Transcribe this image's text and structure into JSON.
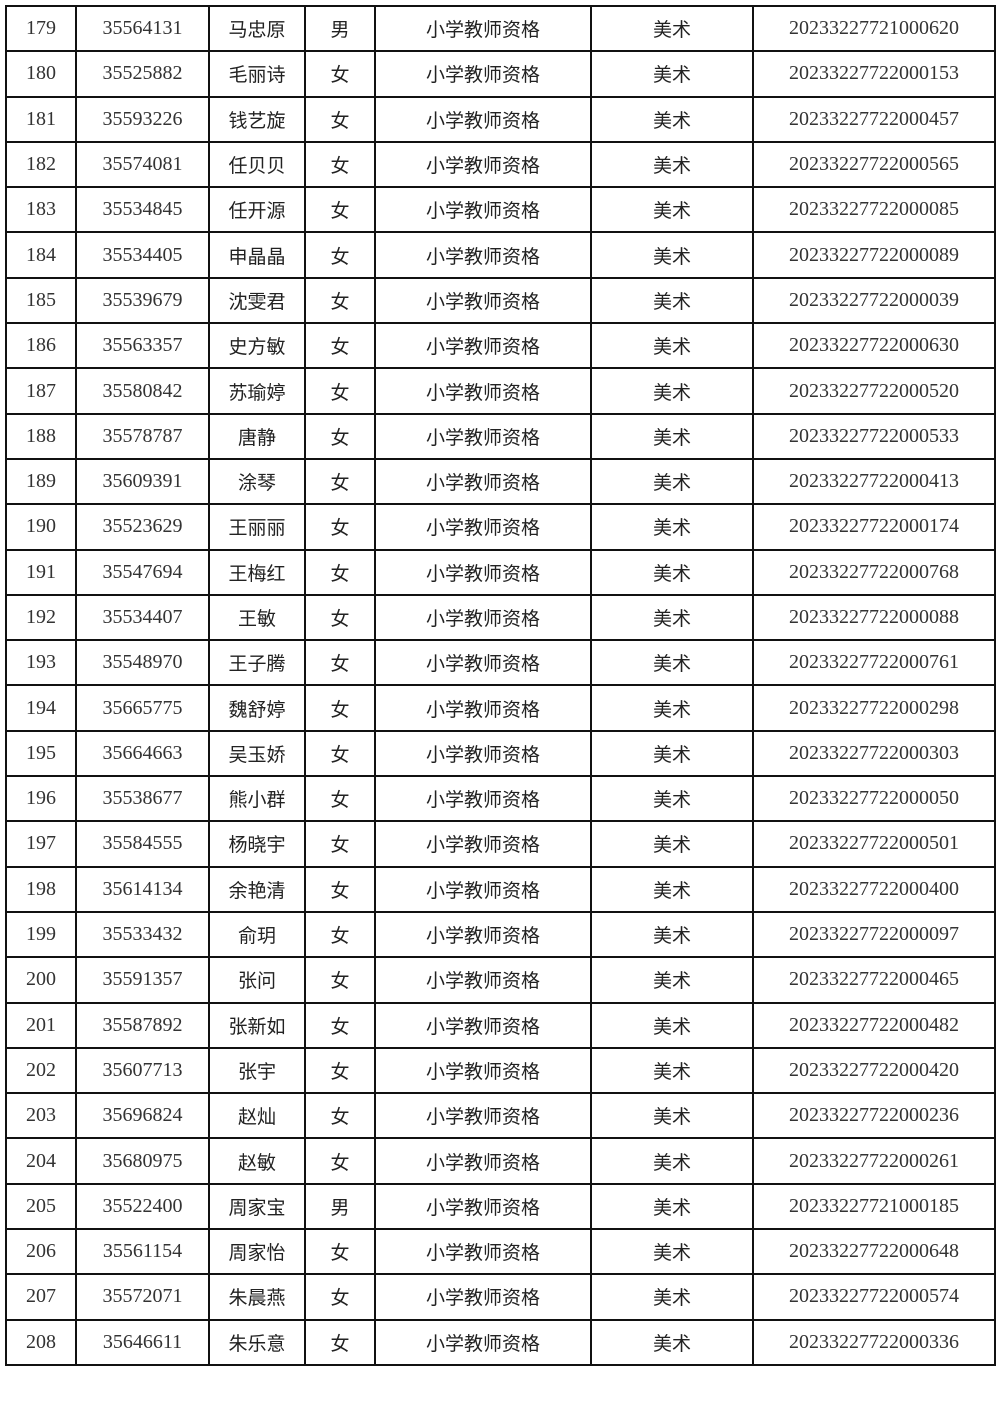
{
  "rows": [
    [
      "179",
      "35564131",
      "马忠原",
      "男",
      "小学教师资格",
      "美术",
      "20233227721000620"
    ],
    [
      "180",
      "35525882",
      "毛丽诗",
      "女",
      "小学教师资格",
      "美术",
      "20233227722000153"
    ],
    [
      "181",
      "35593226",
      "钱艺旋",
      "女",
      "小学教师资格",
      "美术",
      "20233227722000457"
    ],
    [
      "182",
      "35574081",
      "任贝贝",
      "女",
      "小学教师资格",
      "美术",
      "20233227722000565"
    ],
    [
      "183",
      "35534845",
      "任开源",
      "女",
      "小学教师资格",
      "美术",
      "20233227722000085"
    ],
    [
      "184",
      "35534405",
      "申晶晶",
      "女",
      "小学教师资格",
      "美术",
      "20233227722000089"
    ],
    [
      "185",
      "35539679",
      "沈雯君",
      "女",
      "小学教师资格",
      "美术",
      "20233227722000039"
    ],
    [
      "186",
      "35563357",
      "史方敏",
      "女",
      "小学教师资格",
      "美术",
      "20233227722000630"
    ],
    [
      "187",
      "35580842",
      "苏瑜婷",
      "女",
      "小学教师资格",
      "美术",
      "20233227722000520"
    ],
    [
      "188",
      "35578787",
      "唐静",
      "女",
      "小学教师资格",
      "美术",
      "20233227722000533"
    ],
    [
      "189",
      "35609391",
      "涂琴",
      "女",
      "小学教师资格",
      "美术",
      "20233227722000413"
    ],
    [
      "190",
      "35523629",
      "王丽丽",
      "女",
      "小学教师资格",
      "美术",
      "20233227722000174"
    ],
    [
      "191",
      "35547694",
      "王梅红",
      "女",
      "小学教师资格",
      "美术",
      "20233227722000768"
    ],
    [
      "192",
      "35534407",
      "王敏",
      "女",
      "小学教师资格",
      "美术",
      "20233227722000088"
    ],
    [
      "193",
      "35548970",
      "王子腾",
      "女",
      "小学教师资格",
      "美术",
      "20233227722000761"
    ],
    [
      "194",
      "35665775",
      "魏舒婷",
      "女",
      "小学教师资格",
      "美术",
      "20233227722000298"
    ],
    [
      "195",
      "35664663",
      "吴玉娇",
      "女",
      "小学教师资格",
      "美术",
      "20233227722000303"
    ],
    [
      "196",
      "35538677",
      "熊小群",
      "女",
      "小学教师资格",
      "美术",
      "20233227722000050"
    ],
    [
      "197",
      "35584555",
      "杨晓宇",
      "女",
      "小学教师资格",
      "美术",
      "20233227722000501"
    ],
    [
      "198",
      "35614134",
      "余艳清",
      "女",
      "小学教师资格",
      "美术",
      "20233227722000400"
    ],
    [
      "199",
      "35533432",
      "俞玥",
      "女",
      "小学教师资格",
      "美术",
      "20233227722000097"
    ],
    [
      "200",
      "35591357",
      "张问",
      "女",
      "小学教师资格",
      "美术",
      "20233227722000465"
    ],
    [
      "201",
      "35587892",
      "张新如",
      "女",
      "小学教师资格",
      "美术",
      "20233227722000482"
    ],
    [
      "202",
      "35607713",
      "张宇",
      "女",
      "小学教师资格",
      "美术",
      "20233227722000420"
    ],
    [
      "203",
      "35696824",
      "赵灿",
      "女",
      "小学教师资格",
      "美术",
      "20233227722000236"
    ],
    [
      "204",
      "35680975",
      "赵敏",
      "女",
      "小学教师资格",
      "美术",
      "20233227722000261"
    ],
    [
      "205",
      "35522400",
      "周家宝",
      "男",
      "小学教师资格",
      "美术",
      "20233227721000185"
    ],
    [
      "206",
      "35561154",
      "周家怡",
      "女",
      "小学教师资格",
      "美术",
      "20233227722000648"
    ],
    [
      "207",
      "35572071",
      "朱晨燕",
      "女",
      "小学教师资格",
      "美术",
      "20233227722000574"
    ],
    [
      "208",
      "35646611",
      "朱乐意",
      "女",
      "小学教师资格",
      "美术",
      "20233227722000336"
    ]
  ]
}
